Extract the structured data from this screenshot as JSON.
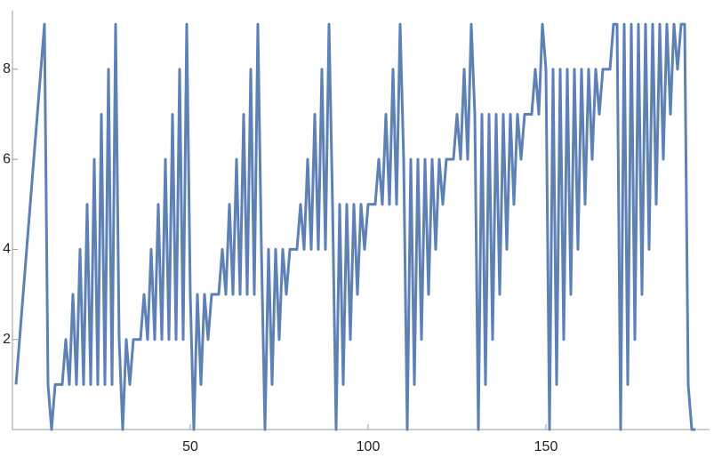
{
  "chart_data": {
    "type": "line",
    "x": [
      1,
      2,
      3,
      4,
      5,
      6,
      7,
      8,
      9,
      10,
      11,
      12,
      13,
      14,
      15,
      16,
      17,
      18,
      19,
      20,
      21,
      22,
      23,
      24,
      25,
      26,
      27,
      28,
      29,
      30,
      31,
      32,
      33,
      34,
      35,
      36,
      37,
      38,
      39,
      40,
      41,
      42,
      43,
      44,
      45,
      46,
      47,
      48,
      49,
      50,
      51,
      52,
      53,
      54,
      55,
      56,
      57,
      58,
      59,
      60,
      61,
      62,
      63,
      64,
      65,
      66,
      67,
      68,
      69,
      70,
      71,
      72,
      73,
      74,
      75,
      76,
      77,
      78,
      79,
      80,
      81,
      82,
      83,
      84,
      85,
      86,
      87,
      88,
      89,
      90,
      91,
      92,
      93,
      94,
      95,
      96,
      97,
      98,
      99,
      100,
      101,
      102,
      103,
      104,
      105,
      106,
      107,
      108,
      109,
      110,
      111,
      112,
      113,
      114,
      115,
      116,
      117,
      118,
      119,
      120,
      121,
      122,
      123,
      124,
      125,
      126,
      127,
      128,
      129,
      130,
      131,
      132,
      133,
      134,
      135,
      136,
      137,
      138,
      139,
      140,
      141,
      142,
      143,
      144,
      145,
      146,
      147,
      148,
      149,
      150,
      151,
      152,
      153,
      154,
      155,
      156,
      157,
      158,
      159,
      160,
      161,
      162,
      163,
      164,
      165,
      166,
      167,
      168,
      169,
      170,
      171,
      172,
      173,
      174,
      175,
      176,
      177,
      178,
      179,
      180,
      181,
      182,
      183,
      184,
      185,
      186,
      187,
      188,
      189,
      190,
      191,
      192
    ],
    "series": [
      {
        "color": "#5e81b5",
        "values": [
          1,
          2,
          3,
          4,
          5,
          6,
          7,
          8,
          9,
          1,
          0,
          1,
          1,
          1,
          2,
          1,
          3,
          1,
          4,
          1,
          5,
          1,
          6,
          1,
          7,
          1,
          8,
          1,
          9,
          2,
          0,
          2,
          1,
          2,
          2,
          2,
          3,
          2,
          4,
          2,
          5,
          2,
          6,
          2,
          7,
          2,
          8,
          2,
          9,
          3,
          0,
          3,
          1,
          3,
          2,
          3,
          3,
          3,
          4,
          3,
          5,
          3,
          6,
          3,
          7,
          3,
          8,
          3,
          9,
          4,
          0,
          4,
          1,
          4,
          2,
          4,
          3,
          4,
          4,
          4,
          5,
          4,
          6,
          4,
          7,
          4,
          8,
          4,
          9,
          5,
          0,
          5,
          1,
          5,
          2,
          5,
          3,
          5,
          4,
          5,
          5,
          5,
          6,
          5,
          7,
          5,
          8,
          5,
          9,
          6,
          0,
          6,
          1,
          6,
          2,
          6,
          3,
          6,
          4,
          6,
          5,
          6,
          6,
          6,
          7,
          6,
          8,
          6,
          9,
          7,
          0,
          7,
          1,
          7,
          2,
          7,
          3,
          7,
          4,
          7,
          5,
          7,
          6,
          7,
          7,
          7,
          8,
          7,
          9,
          8,
          0,
          8,
          1,
          8,
          2,
          8,
          3,
          8,
          4,
          8,
          5,
          8,
          6,
          8,
          7,
          8,
          8,
          8,
          9,
          9,
          0,
          9,
          1,
          9,
          2,
          9,
          3,
          9,
          4,
          9,
          5,
          9,
          6,
          9,
          7,
          9,
          8,
          9,
          9,
          1,
          0,
          0
        ]
      }
    ],
    "xlim": [
      0,
      196
    ],
    "ylim": [
      0,
      9.3
    ],
    "xticks": [
      50,
      100,
      150
    ],
    "yticks": [
      2,
      4,
      6,
      8
    ]
  }
}
